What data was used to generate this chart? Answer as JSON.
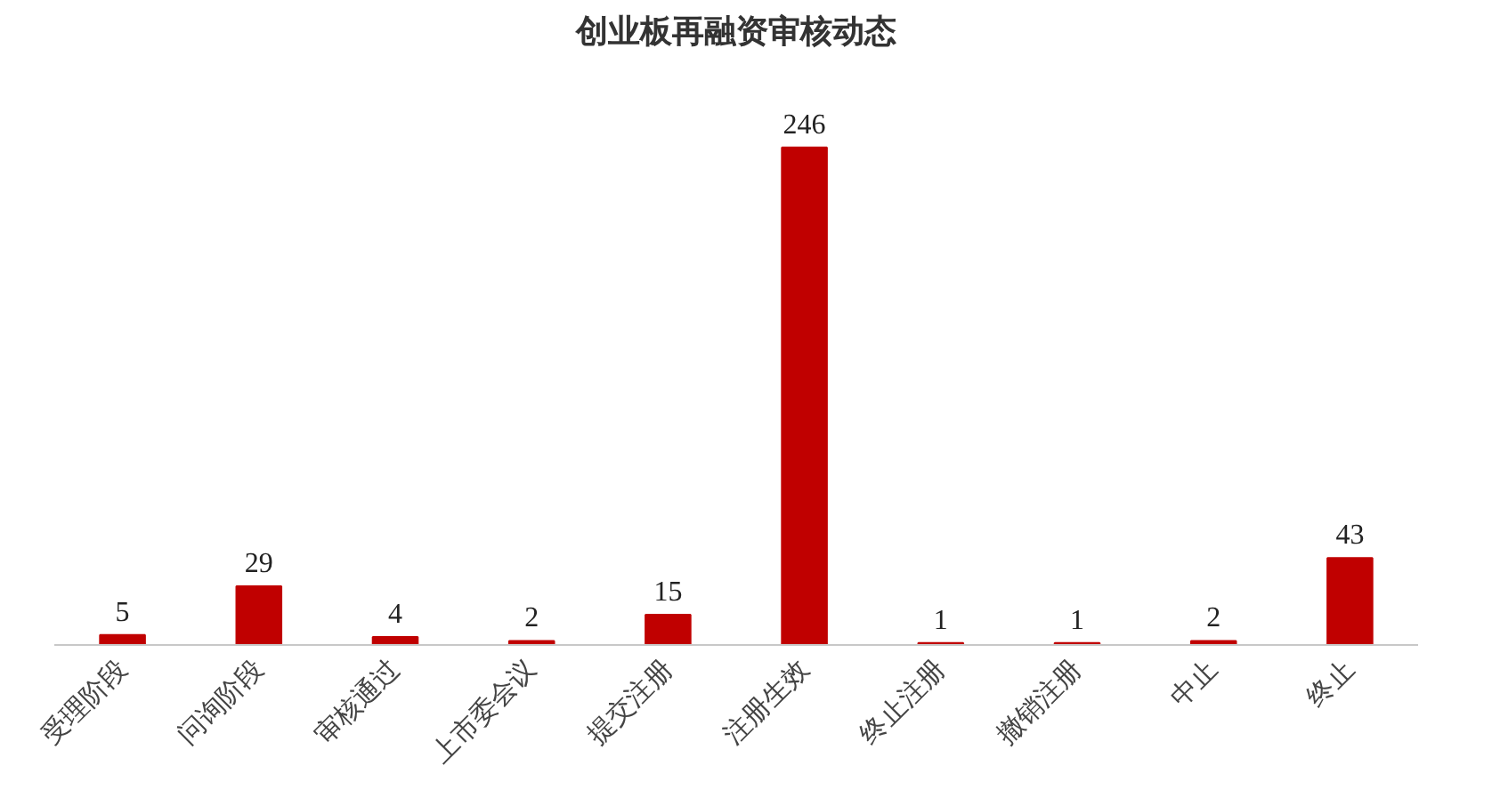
{
  "chart_data": {
    "type": "bar",
    "title": "创业板再融资审核动态",
    "categories": [
      "受理阶段",
      "问询阶段",
      "审核通过",
      "上市委会议",
      "提交注册",
      "注册生效",
      "终止注册",
      "撤销注册",
      "中止",
      "终止"
    ],
    "values": [
      5,
      29,
      4,
      2,
      15,
      246,
      1,
      1,
      2,
      43
    ],
    "color": "#c00000",
    "data_labels": true,
    "grid": false
  }
}
